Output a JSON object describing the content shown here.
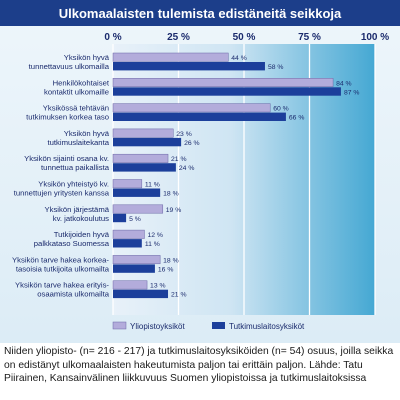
{
  "chart_data": {
    "type": "bar",
    "orientation": "horizontal",
    "title": "Ulkomaalaisten tulemista edistäneitä seikkoja",
    "xlim": [
      0,
      100
    ],
    "tick_labels": [
      "0 %",
      "25 %",
      "50 %",
      "75 %",
      "100 %"
    ],
    "value_suffix": " %",
    "categories": [
      [
        "Yksikön hyvä",
        "tunnettavuus ulkomailla"
      ],
      [
        "Henkilökohtaiset",
        "kontaktit ulkomaille"
      ],
      [
        "Yksikössä tehtävän",
        "tutkimuksen korkea taso"
      ],
      [
        "Yksikön hyvä",
        "tutkimuslaitekanta"
      ],
      [
        "Yksikön sijainti osana kv.",
        "tunnettua paikallista"
      ],
      [
        "Yksikön yhteistyö kv.",
        "tunnettujen yritysten kanssa"
      ],
      [
        "Yksikön järjestämä",
        "kv. jatkokoulutus"
      ],
      [
        "Tutkijoiden hyvä",
        "palkkataso Suomessa"
      ],
      [
        "Yksikön tarve hakea korkea-",
        "tasoisia tutkijoita ulkomailta"
      ],
      [
        "Yksikön tarve hakea erityis-",
        "osaamista ulkomailta"
      ]
    ],
    "series": [
      {
        "name": "Yliopistoyksiköt",
        "values": [
          44,
          84,
          60,
          23,
          21,
          11,
          19,
          12,
          18,
          13
        ]
      },
      {
        "name": "Tutkimuslaitosyksiköt",
        "values": [
          58,
          87,
          66,
          26,
          24,
          18,
          5,
          11,
          16,
          21
        ]
      }
    ],
    "legend_position": "bottom",
    "colors": {
      "title_bar": "#1c3e8a",
      "series_1": "#b3acdb",
      "series_2": "#1c3f9b",
      "panel_left": "#e8f1f9",
      "panel_right": "#45a8d3",
      "category_text": "#1a2a6c"
    }
  },
  "caption": "Niiden yliopisto- (n= 216 - 217) ja tutkimuslaitosyksiköiden (n= 54) osuus, joilla seikka on edistänyt ulkomaalaisten hakeutumista paljon tai erittäin paljon. Lähde: Tatu Piirainen, Kansainvälinen liikkuvuus Suomen yliopistoissa ja tutkimuslaitoksissa"
}
